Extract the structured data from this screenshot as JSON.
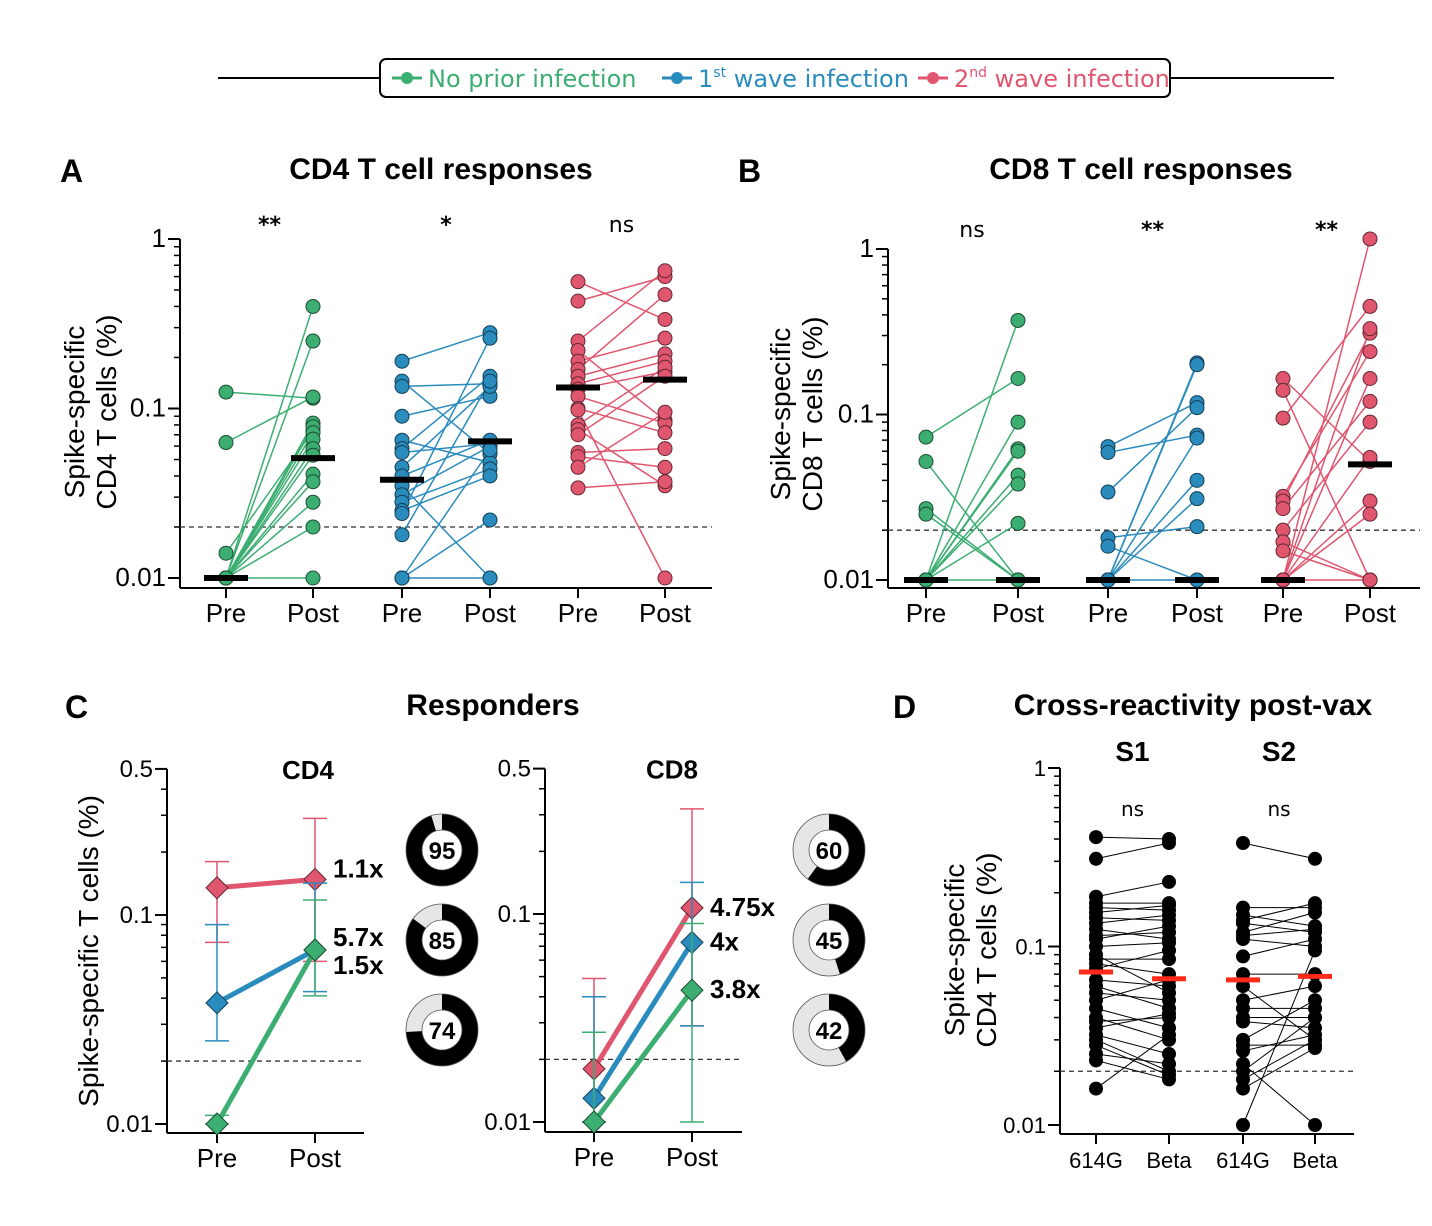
{
  "colors": {
    "no_prior": "#3dae72",
    "first_wave": "#2a8bbd",
    "second_wave": "#e0566f",
    "median": "#000000",
    "median_red": "#ff2a1a",
    "donut_fill": "#000000",
    "donut_empty": "#e6e6e6"
  },
  "legend": {
    "items": [
      {
        "key": "no_prior",
        "label": "No prior infection",
        "sup": ""
      },
      {
        "key": "first_wave",
        "label_pre": "1",
        "sup": "st",
        "label": " wave infection"
      },
      {
        "key": "second_wave",
        "label_pre": "2",
        "sup": "nd",
        "label": " wave infection"
      }
    ]
  },
  "chart_data": [
    {
      "id": "A",
      "panel_letter": "A",
      "type": "scatter",
      "title": "CD4 T cell responses",
      "ylabel_line1": "Spike-specific",
      "ylabel_line2": "CD4 T cells (%)",
      "yscale": "log",
      "ylim": [
        0.01,
        1
      ],
      "yticks": [
        {
          "v": 1,
          "label": "1"
        },
        {
          "v": 0.1,
          "label": "0.1"
        },
        {
          "v": 0.01,
          "label": "0.01"
        }
      ],
      "threshold": 0.02,
      "categories": [
        "Pre",
        "Post",
        "Pre",
        "Post",
        "Pre",
        "Post"
      ],
      "groups": [
        {
          "key": "no_prior",
          "significance": "**",
          "median_pre": 0.01,
          "median_post": 0.051,
          "pairs": [
            [
              0.125,
              0.115
            ],
            [
              0.063,
              0.117
            ],
            [
              0.014,
              0.074
            ],
            [
              0.01,
              0.4
            ],
            [
              0.01,
              0.25
            ],
            [
              0.01,
              0.082
            ],
            [
              0.01,
              0.078
            ],
            [
              0.01,
              0.072
            ],
            [
              0.01,
              0.066
            ],
            [
              0.01,
              0.058
            ],
            [
              0.01,
              0.053
            ],
            [
              0.01,
              0.041
            ],
            [
              0.01,
              0.037
            ],
            [
              0.01,
              0.028
            ],
            [
              0.01,
              0.02
            ],
            [
              0.01,
              0.01
            ]
          ]
        },
        {
          "key": "first_wave",
          "significance": "*",
          "median_pre": 0.038,
          "median_post": 0.064,
          "pairs": [
            [
              0.19,
              0.28
            ],
            [
              0.145,
              0.054
            ],
            [
              0.135,
              0.14
            ],
            [
              0.09,
              0.118
            ],
            [
              0.065,
              0.048
            ],
            [
              0.058,
              0.155
            ],
            [
              0.055,
              0.062
            ],
            [
              0.045,
              0.135
            ],
            [
              0.04,
              0.065
            ],
            [
              0.035,
              0.01
            ],
            [
              0.031,
              0.06
            ],
            [
              0.028,
              0.044
            ],
            [
              0.025,
              0.04
            ],
            [
              0.024,
              0.26
            ],
            [
              0.018,
              0.145
            ],
            [
              0.01,
              0.057
            ],
            [
              0.01,
              0.022
            ],
            [
              0.01,
              0.01
            ]
          ]
        },
        {
          "key": "second_wave",
          "significance": "ns",
          "median_pre": 0.133,
          "median_post": 0.148,
          "pairs": [
            [
              0.56,
              0.335
            ],
            [
              0.43,
              0.6
            ],
            [
              0.25,
              0.65
            ],
            [
              0.22,
              0.085
            ],
            [
              0.19,
              0.26
            ],
            [
              0.17,
              0.47
            ],
            [
              0.155,
              0.21
            ],
            [
              0.14,
              0.19
            ],
            [
              0.13,
              0.165
            ],
            [
              0.118,
              0.082
            ],
            [
              0.1,
              0.072
            ],
            [
              0.08,
              0.175
            ],
            [
              0.075,
              0.035
            ],
            [
              0.07,
              0.155
            ],
            [
              0.055,
              0.058
            ],
            [
              0.052,
              0.045
            ],
            [
              0.045,
              0.095
            ],
            [
              0.034,
              0.037
            ],
            [
              0.098,
              0.01
            ]
          ]
        }
      ]
    },
    {
      "id": "B",
      "panel_letter": "B",
      "type": "scatter",
      "title": "CD8 T cell responses",
      "ylabel_line1": "Spike-specific",
      "ylabel_line2": "CD8 T cells (%)",
      "yscale": "log",
      "ylim": [
        0.01,
        1
      ],
      "yticks": [
        {
          "v": 1,
          "label": "1"
        },
        {
          "v": 0.1,
          "label": "0.1"
        },
        {
          "v": 0.01,
          "label": "0.01"
        }
      ],
      "threshold": 0.02,
      "categories": [
        "Pre",
        "Post",
        "Pre",
        "Post",
        "Pre",
        "Post"
      ],
      "groups": [
        {
          "key": "no_prior",
          "significance": "ns",
          "median_pre": 0.01,
          "median_post": 0.01,
          "pairs": [
            [
              0.073,
              0.165
            ],
            [
              0.052,
              0.01
            ],
            [
              0.027,
              0.01
            ],
            [
              0.025,
              0.01
            ],
            [
              0.01,
              0.37
            ],
            [
              0.01,
              0.09
            ],
            [
              0.01,
              0.062
            ],
            [
              0.01,
              0.06
            ],
            [
              0.01,
              0.043
            ],
            [
              0.01,
              0.038
            ],
            [
              0.01,
              0.022
            ],
            [
              0.01,
              0.01
            ]
          ]
        },
        {
          "key": "first_wave",
          "significance": "**",
          "median_pre": 0.01,
          "median_post": 0.01,
          "pairs": [
            [
              0.064,
              0.118
            ],
            [
              0.059,
              0.075
            ],
            [
              0.034,
              0.11
            ],
            [
              0.018,
              0.021
            ],
            [
              0.016,
              0.01
            ],
            [
              0.01,
              0.205
            ],
            [
              0.01,
              0.2
            ],
            [
              0.01,
              0.072
            ],
            [
              0.01,
              0.04
            ],
            [
              0.01,
              0.031
            ],
            [
              0.01,
              0.01
            ]
          ]
        },
        {
          "key": "second_wave",
          "significance": "**",
          "median_pre": 0.01,
          "median_post": 0.05,
          "pairs": [
            [
              0.165,
              0.052
            ],
            [
              0.14,
              0.01
            ],
            [
              0.095,
              0.45
            ],
            [
              0.032,
              0.24
            ],
            [
              0.03,
              0.31
            ],
            [
              0.027,
              0.12
            ],
            [
              0.02,
              0.09
            ],
            [
              0.017,
              0.01
            ],
            [
              0.015,
              0.01
            ],
            [
              0.01,
              1.15
            ],
            [
              0.01,
              0.33
            ],
            [
              0.01,
              0.165
            ],
            [
              0.01,
              0.03
            ],
            [
              0.01,
              0.025
            ],
            [
              0.01,
              0.055
            ],
            [
              0.01,
              0.01
            ]
          ]
        }
      ]
    },
    {
      "id": "C-CD4",
      "panel_letter": "C",
      "type": "line",
      "title": "Responders",
      "subtitle": "CD4",
      "ylabel": "Spike-specific T cells (%)",
      "yscale": "log",
      "ylim": [
        0.01,
        0.5
      ],
      "yticks": [
        {
          "v": 0.5,
          "label": "0.5"
        },
        {
          "v": 0.1,
          "label": "0.1"
        },
        {
          "v": 0.01,
          "label": "0.01"
        }
      ],
      "threshold": 0.02,
      "categories": [
        "Pre",
        "Post"
      ],
      "series": [
        {
          "key": "second_wave",
          "values": [
            0.135,
            0.148
          ],
          "err_low": [
            0.074,
            0.06
          ],
          "err_high": [
            0.18,
            0.29
          ],
          "fold": "1.1x",
          "responders_pct": 95
        },
        {
          "key": "first_wave",
          "values": [
            0.038,
            0.068
          ],
          "err_low": [
            0.025,
            0.043
          ],
          "err_high": [
            0.09,
            0.142
          ],
          "fold": "1.5x",
          "responders_pct": 85
        },
        {
          "key": "no_prior",
          "values": [
            0.01,
            0.068
          ],
          "err_low": [
            0.01,
            0.041
          ],
          "err_high": [
            0.011,
            0.118
          ],
          "fold": "5.7x",
          "responders_pct": 74
        }
      ]
    },
    {
      "id": "C-CD8",
      "panel_letter": "",
      "type": "line",
      "subtitle": "CD8",
      "yscale": "log",
      "ylim": [
        0.01,
        0.5
      ],
      "yticks": [
        {
          "v": 0.5,
          "label": "0.5"
        },
        {
          "v": 0.1,
          "label": "0.1"
        },
        {
          "v": 0.01,
          "label": "0.01"
        }
      ],
      "threshold": 0.02,
      "categories": [
        "Pre",
        "Post"
      ],
      "series": [
        {
          "key": "second_wave",
          "values": [
            0.018,
            0.107
          ],
          "err_low": [
            0.01,
            0.029
          ],
          "err_high": [
            0.049,
            0.32
          ],
          "fold": "4.75x",
          "responders_pct": 60
        },
        {
          "key": "first_wave",
          "values": [
            0.013,
            0.073
          ],
          "err_low": [
            0.01,
            0.029
          ],
          "err_high": [
            0.04,
            0.142
          ],
          "fold": "4x",
          "responders_pct": 45
        },
        {
          "key": "no_prior",
          "values": [
            0.01,
            0.043
          ],
          "err_low": [
            0.01,
            0.01
          ],
          "err_high": [
            0.027,
            0.09
          ],
          "fold": "3.8x",
          "responders_pct": 42
        }
      ]
    },
    {
      "id": "D",
      "panel_letter": "D",
      "type": "scatter",
      "title": "Cross-reactivity post-vax",
      "ylabel_line1": "Spike-specific",
      "ylabel_line2": "CD4 T cells (%)",
      "yscale": "log",
      "ylim": [
        0.01,
        1
      ],
      "yticks": [
        {
          "v": 1,
          "label": "1"
        },
        {
          "v": 0.1,
          "label": "0.1"
        },
        {
          "v": 0.01,
          "label": "0.01"
        }
      ],
      "threshold": 0.02,
      "categories": [
        "614G",
        "Beta",
        "614G",
        "Beta"
      ],
      "groups": [
        {
          "name": "S1",
          "significance": "ns",
          "median_left": 0.072,
          "median_right": 0.066,
          "pairs": [
            [
              0.41,
              0.4
            ],
            [
              0.31,
              0.38
            ],
            [
              0.19,
              0.23
            ],
            [
              0.175,
              0.175
            ],
            [
              0.165,
              0.16
            ],
            [
              0.155,
              0.17
            ],
            [
              0.145,
              0.14
            ],
            [
              0.135,
              0.15
            ],
            [
              0.125,
              0.11
            ],
            [
              0.115,
              0.12
            ],
            [
              0.11,
              0.13
            ],
            [
              0.1,
              0.105
            ],
            [
              0.09,
              0.055
            ],
            [
              0.085,
              0.085
            ],
            [
              0.08,
              0.07
            ],
            [
              0.075,
              0.095
            ],
            [
              0.065,
              0.06
            ],
            [
              0.06,
              0.045
            ],
            [
              0.055,
              0.05
            ],
            [
              0.05,
              0.065
            ],
            [
              0.045,
              0.035
            ],
            [
              0.04,
              0.03
            ],
            [
              0.038,
              0.04
            ],
            [
              0.035,
              0.042
            ],
            [
              0.032,
              0.025
            ],
            [
              0.03,
              0.02
            ],
            [
              0.028,
              0.019
            ],
            [
              0.025,
              0.022
            ],
            [
              0.023,
              0.018
            ],
            [
              0.016,
              0.032
            ]
          ]
        },
        {
          "name": "S2",
          "significance": "ns",
          "median_left": 0.065,
          "median_right": 0.068,
          "pairs": [
            [
              0.38,
              0.31
            ],
            [
              0.165,
              0.165
            ],
            [
              0.15,
              0.13
            ],
            [
              0.14,
              0.175
            ],
            [
              0.135,
              0.12
            ],
            [
              0.12,
              0.155
            ],
            [
              0.115,
              0.125
            ],
            [
              0.11,
              0.1
            ],
            [
              0.088,
              0.11
            ],
            [
              0.07,
              0.07
            ],
            [
              0.06,
              0.03
            ],
            [
              0.05,
              0.06
            ],
            [
              0.045,
              0.045
            ],
            [
              0.04,
              0.04
            ],
            [
              0.038,
              0.035
            ],
            [
              0.03,
              0.05
            ],
            [
              0.028,
              0.028
            ],
            [
              0.026,
              0.032
            ],
            [
              0.022,
              0.01
            ],
            [
              0.02,
              0.04
            ],
            [
              0.018,
              0.03
            ],
            [
              0.016,
              0.027
            ],
            [
              0.01,
              0.095
            ]
          ]
        }
      ]
    }
  ]
}
